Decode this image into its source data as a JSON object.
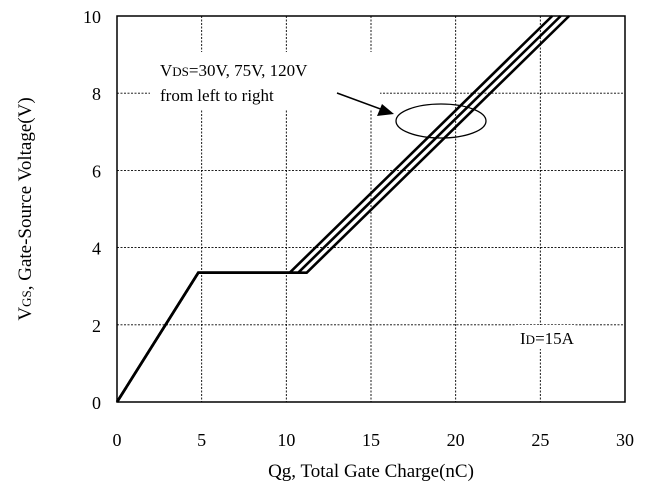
{
  "chart_data": {
    "type": "line",
    "xlabel": "Qg, Total Gate Charge(nC)",
    "ylabel_main": "V",
    "ylabel_sub": "GS",
    "ylabel_rest": ", Gate-Source Voltage(V)",
    "xlim": [
      0,
      30
    ],
    "ylim": [
      0,
      10
    ],
    "x_ticks": [
      0,
      5,
      10,
      15,
      20,
      25,
      30
    ],
    "y_ticks": [
      0,
      2,
      4,
      6,
      8,
      10
    ],
    "grid": true,
    "series": [
      {
        "name": "VDS=30V",
        "x": [
          0,
          4.8,
          10.2,
          25.7
        ],
        "y": [
          0,
          3.35,
          3.35,
          10
        ]
      },
      {
        "name": "VDS=75V",
        "x": [
          0,
          4.8,
          10.7,
          26.2
        ],
        "y": [
          0,
          3.35,
          3.35,
          10
        ]
      },
      {
        "name": "VDS=120V",
        "x": [
          0,
          4.8,
          11.2,
          26.7
        ],
        "y": [
          0,
          3.35,
          3.35,
          10
        ]
      }
    ],
    "annotations": {
      "vds_main": "V",
      "vds_sub": "DS",
      "vds_rest": "=30V, 75V, 120V",
      "vds_line2": "from left to right",
      "id_main": "I",
      "id_sub": "D",
      "id_rest": "=15A"
    }
  }
}
